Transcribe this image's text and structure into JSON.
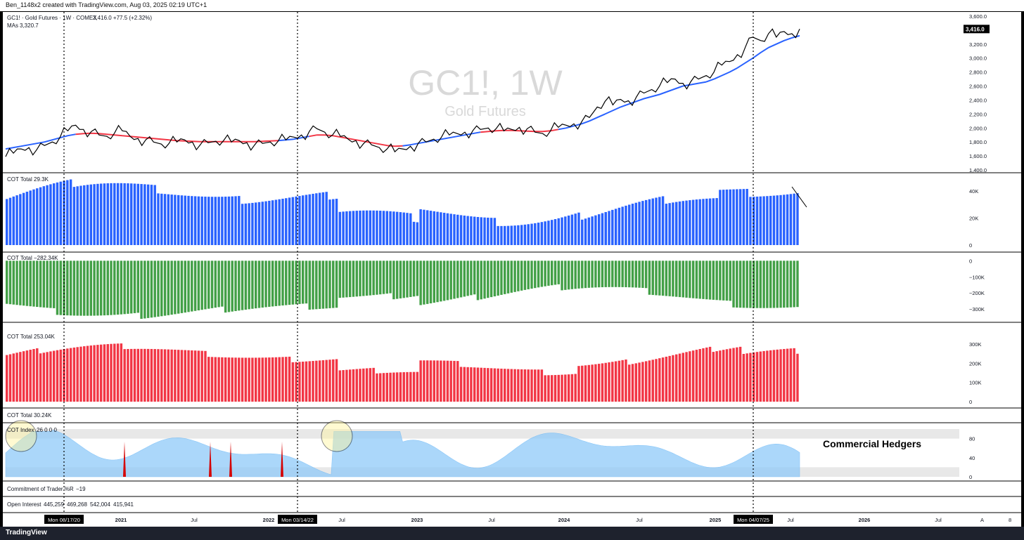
{
  "header": {
    "attribution": "Ben_1148x2 created with TradingView.com, Aug 03, 2025 02:19 UTC+1"
  },
  "watermark": {
    "symbol": "GC1!, 1W",
    "name": "Gold Futures"
  },
  "legend": {
    "main_symbol": "GC1! · Gold Futures · 1W · COMEX",
    "main_quote": "3,416.0  +77.5 (+2.32%)",
    "ma_label": "MAs",
    "ma_value": "3,320.7",
    "cot1": {
      "label": "COT Total",
      "value": "29.3K"
    },
    "cot2": {
      "label": "COT Total",
      "value": "−282.34K"
    },
    "cot3": {
      "label": "COT Total",
      "value": "253.04K"
    },
    "cot4": {
      "label": "COT Total",
      "value": "30.24K"
    },
    "cot_index": {
      "label": "COT Index",
      "value": "26  0  0  0"
    },
    "pctr": {
      "label": "Commitment of Trader %R",
      "value": "−19"
    },
    "oi": {
      "label": "Open Interest",
      "values": [
        "445,259",
        "469,268",
        "542,004",
        "415,941"
      ]
    }
  },
  "annotation": {
    "commercial_hedgers": "Commercial Hedgers"
  },
  "last_price_badge": "3,416.0",
  "footer": {
    "brand": "TradingView",
    "auto_btn": "A",
    "log_btn": "8"
  },
  "colors": {
    "price": "#000000",
    "ma_up": "#2962ff",
    "ma_down": "#f23645",
    "cot1": "#2962ff",
    "cot2": "#43a047",
    "cot3": "#f23645",
    "index_fill": "#90caf9",
    "index_spike": "#d50000",
    "oi2": "#131722",
    "oi3": "#9c27b0"
  },
  "chart_data": [
    {
      "type": "line",
      "name": "price",
      "x_start_index": 0,
      "values_are_weekly": true,
      "ylim": [
        1400,
        3600
      ],
      "yticks": [
        "1,400.0",
        "1,600.0",
        "1,800.0",
        "2,000.0",
        "2,200.0",
        "2,400.0",
        "2,600.0",
        "2,800.0",
        "3,000.0",
        "3,200.0",
        "3,400.0",
        "3,600.0"
      ],
      "yvals": [
        1400,
        1600,
        1800,
        2000,
        2200,
        2400,
        2600,
        2800,
        3000,
        3200,
        3400,
        3600
      ],
      "price": [
        1590,
        1640,
        1700,
        1720,
        1690,
        1750,
        1800,
        1870,
        1960,
        2040,
        1980,
        1950,
        1900,
        1880,
        1930,
        1960,
        1880,
        1850,
        1830,
        1800,
        1770,
        1780,
        1800,
        1830,
        1800,
        1760,
        1790,
        1810,
        1820,
        1800,
        1820,
        1790,
        1760,
        1780,
        1800,
        1810,
        1830,
        1870,
        1900,
        1950,
        1990,
        1940,
        1900,
        1880,
        1840,
        1820,
        1780,
        1760,
        1720,
        1700,
        1660,
        1700,
        1740,
        1780,
        1800,
        1840,
        1870,
        1900,
        1920,
        1940,
        1960,
        1980,
        2000,
        1990,
        1960,
        1980,
        2010,
        1990,
        1940,
        1920,
        1960,
        2010,
        2040,
        2060,
        2090,
        2150,
        2300,
        2380,
        2330,
        2410,
        2390,
        2440,
        2500,
        2550,
        2600,
        2650,
        2700,
        2640,
        2660,
        2700,
        2750,
        2800,
        2900,
        2950,
        3050,
        3150,
        3300,
        3250,
        3350,
        3300,
        3380,
        3350,
        3416
      ],
      "ma": [
        1700,
        1720,
        1740,
        1760,
        1780,
        1800,
        1830,
        1860,
        1890,
        1910,
        1920,
        1925,
        1920,
        1910,
        1900,
        1890,
        1880,
        1870,
        1860,
        1850,
        1840,
        1830,
        1820,
        1815,
        1810,
        1805,
        1805,
        1805,
        1805,
        1805,
        1805,
        1805,
        1805,
        1810,
        1815,
        1820,
        1830,
        1840,
        1860,
        1880,
        1900,
        1900,
        1890,
        1870,
        1850,
        1830,
        1810,
        1790,
        1770,
        1750,
        1740,
        1745,
        1760,
        1780,
        1800,
        1820,
        1840,
        1860,
        1880,
        1900,
        1920,
        1940,
        1950,
        1960,
        1965,
        1965,
        1960,
        1955,
        1950,
        1950,
        1960,
        1980,
        2000,
        2030,
        2060,
        2100,
        2150,
        2200,
        2250,
        2300,
        2340,
        2380,
        2420,
        2450,
        2480,
        2520,
        2560,
        2600,
        2620,
        2640,
        2660,
        2700,
        2750,
        2800,
        2860,
        2930,
        3000,
        3080,
        3150,
        3200,
        3250,
        3290,
        3320
      ],
      "ma_down_ranges": [
        [
          10,
          36
        ],
        [
          40,
          52
        ],
        [
          62,
          72
        ]
      ]
    },
    {
      "type": "bar",
      "name": "cot-longs",
      "ylim": [
        0,
        50
      ],
      "yticks": [
        "0",
        "20K",
        "40K"
      ],
      "yvals": [
        0,
        20,
        40
      ],
      "pattern": "longs"
    },
    {
      "type": "bar",
      "name": "cot-commercials",
      "ylim": [
        -360,
        10
      ],
      "yticks": [
        "0",
        "−100K",
        "−200K",
        "−300K"
      ],
      "yvals": [
        0,
        -100,
        -200,
        -300
      ]
    },
    {
      "type": "bar",
      "name": "cot-shorts",
      "ylim": [
        0,
        330
      ],
      "yticks": [
        "0",
        "100K",
        "200K",
        "300K"
      ],
      "yvals": [
        0,
        100,
        200,
        300
      ]
    },
    {
      "type": "area",
      "name": "cot-index",
      "ylim": [
        0,
        100
      ],
      "yticks": [
        "0",
        "40",
        "80"
      ],
      "yvals": [
        0,
        40,
        80
      ]
    },
    {
      "type": "time-axis",
      "labels": [
        {
          "text": "Mon 08/17/20",
          "highlight": true
        },
        {
          "text": "2021",
          "bold": true
        },
        {
          "text": "Jul"
        },
        {
          "text": "2022",
          "bold": true
        },
        {
          "text": "Mon 03/14/22",
          "highlight": true
        },
        {
          "text": "Jul"
        },
        {
          "text": "2023",
          "bold": true
        },
        {
          "text": "Jul"
        },
        {
          "text": "2024",
          "bold": true
        },
        {
          "text": "Jul"
        },
        {
          "text": "2025",
          "bold": true
        },
        {
          "text": "Mon 04/07/25",
          "highlight": true
        },
        {
          "text": "Jul"
        },
        {
          "text": "2026",
          "bold": true
        },
        {
          "text": "Jul"
        }
      ]
    }
  ]
}
